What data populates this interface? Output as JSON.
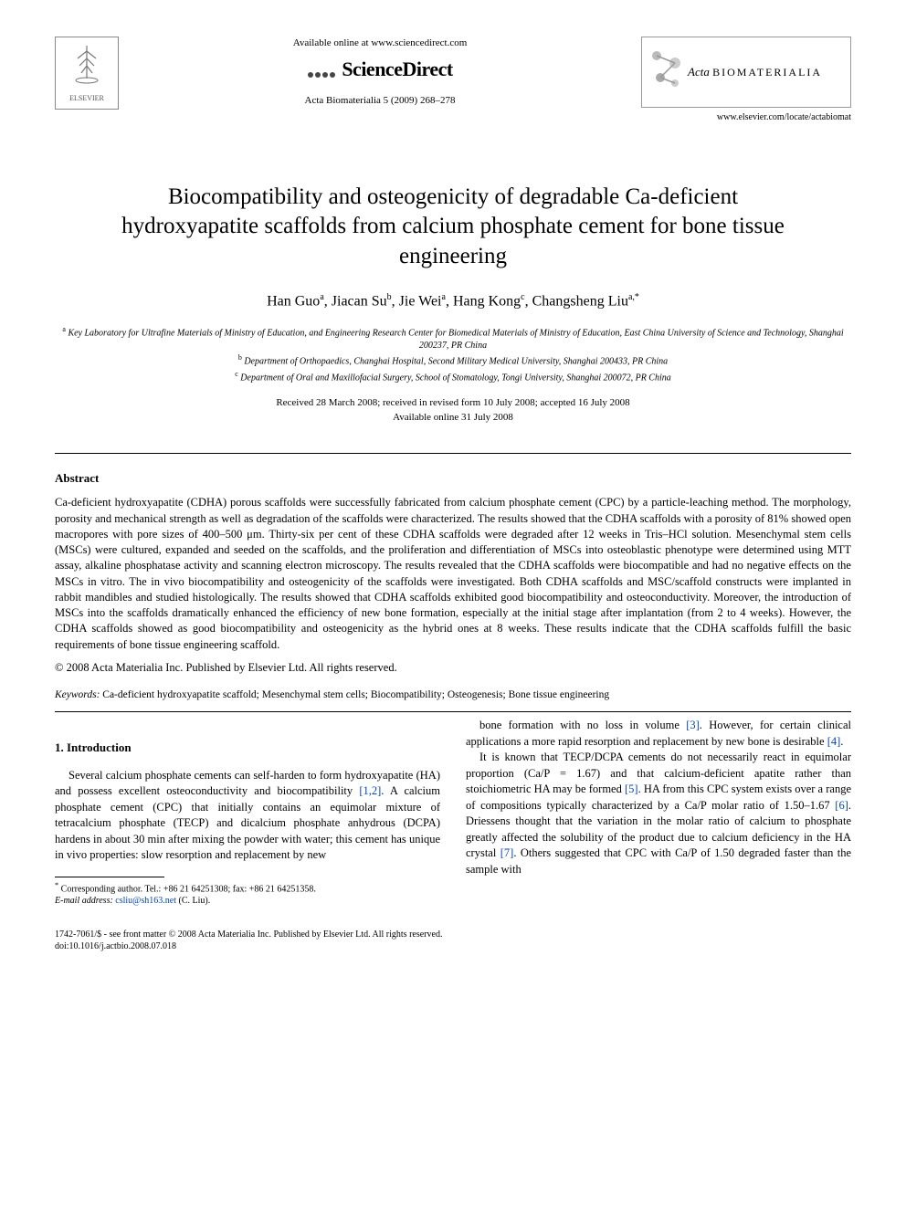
{
  "header": {
    "publisher_name": "ELSEVIER",
    "available_online": "Available online at www.sciencedirect.com",
    "platform": "ScienceDirect",
    "citation": "Acta Biomaterialia 5 (2009) 268–278",
    "journal_name_italic": "Acta",
    "journal_name_caps": "BIOMATERIALIA",
    "journal_url": "www.elsevier.com/locate/actabiomat"
  },
  "article": {
    "title": "Biocompatibility and osteogenicity of degradable Ca-deficient hydroxyapatite scaffolds from calcium phosphate cement for bone tissue engineering",
    "authors_html": "Han Guo<sup>a</sup>, Jiacan Su<sup>b</sup>, Jie Wei<sup>a</sup>, Hang Kong<sup>c</sup>, Changsheng Liu<sup>a,*</sup>",
    "affiliations": [
      "Key Laboratory for Ultrafine Materials of Ministry of Education, and Engineering Research Center for Biomedical Materials of Ministry of Education, East China University of Science and Technology, Shanghai 200237, PR China",
      "Department of Orthopaedics, Changhai Hospital, Second Military Medical University, Shanghai 200433, PR China",
      "Department of Oral and Maxillofacial Surgery, School of Stomatology, Tongi University, Shanghai 200072, PR China"
    ],
    "aff_sup": [
      "a",
      "b",
      "c"
    ],
    "dates_line1": "Received 28 March 2008; received in revised form 10 July 2008; accepted 16 July 2008",
    "dates_line2": "Available online 31 July 2008"
  },
  "abstract": {
    "heading": "Abstract",
    "body": "Ca-deficient hydroxyapatite (CDHA) porous scaffolds were successfully fabricated from calcium phosphate cement (CPC) by a particle-leaching method. The morphology, porosity and mechanical strength as well as degradation of the scaffolds were characterized. The results showed that the CDHA scaffolds with a porosity of 81% showed open macropores with pore sizes of 400–500 μm. Thirty-six per cent of these CDHA scaffolds were degraded after 12 weeks in Tris–HCl solution. Mesenchymal stem cells (MSCs) were cultured, expanded and seeded on the scaffolds, and the proliferation and differentiation of MSCs into osteoblastic phenotype were determined using MTT assay, alkaline phosphatase activity and scanning electron microscopy. The results revealed that the CDHA scaffolds were biocompatible and had no negative effects on the MSCs in vitro. The in vivo biocompatibility and osteogenicity of the scaffolds were investigated. Both CDHA scaffolds and MSC/scaffold constructs were implanted in rabbit mandibles and studied histologically. The results showed that CDHA scaffolds exhibited good biocompatibility and osteoconductivity. Moreover, the introduction of MSCs into the scaffolds dramatically enhanced the efficiency of new bone formation, especially at the initial stage after implantation (from 2 to 4 weeks). However, the CDHA scaffolds showed as good biocompatibility and osteogenicity as the hybrid ones at 8 weeks. These results indicate that the CDHA scaffolds fulfill the basic requirements of bone tissue engineering scaffold.",
    "copyright": "© 2008 Acta Materialia Inc. Published by Elsevier Ltd. All rights reserved."
  },
  "keywords": {
    "label": "Keywords:",
    "list": "Ca-deficient hydroxyapatite scaffold; Mesenchymal stem cells; Biocompatibility; Osteogenesis; Bone tissue engineering"
  },
  "intro": {
    "heading": "1. Introduction",
    "para1_a": "Several calcium phosphate cements can self-harden to form hydroxyapatite (HA) and possess excellent osteoconductivity and biocompatibility ",
    "ref1": "[1,2]",
    "para1_b": ". A calcium phosphate cement (CPC) that initially contains an equimolar mixture of tetracalcium phosphate (TECP) and dicalcium phosphate anhydrous (DCPA) hardens in about 30 min after mixing the powder with water; this cement has unique in vivo properties: slow resorption and replacement by new ",
    "para2_a": "bone formation with no loss in volume ",
    "ref3": "[3]",
    "para2_b": ". However, for certain clinical applications a more rapid resorption and replacement by new bone is desirable ",
    "ref4": "[4]",
    "para2_c": ".",
    "para3_a": "It is known that TECP/DCPA cements do not necessarily react in equimolar proportion (Ca/P = 1.67) and that calcium-deficient apatite rather than stoichiometric HA may be formed ",
    "ref5": "[5]",
    "para3_b": ". HA from this CPC system exists over a range of compositions typically characterized by a Ca/P molar ratio of 1.50–1.67 ",
    "ref6": "[6]",
    "para3_c": ". Driessens thought that the variation in the molar ratio of calcium to phosphate greatly affected the solubility of the product due to calcium deficiency in the HA crystal ",
    "ref7": "[7]",
    "para3_d": ". Others suggested that CPC with Ca/P of 1.50 degraded faster than the sample with"
  },
  "footnote": {
    "corr": "Corresponding author. Tel.: +86 21 64251308; fax: +86 21 64251358.",
    "email_label": "E-mail address:",
    "email": "csliu@sh163.net",
    "email_name": "(C. Liu)."
  },
  "footer": {
    "line1": "1742-7061/$ - see front matter © 2008 Acta Materialia Inc. Published by Elsevier Ltd. All rights reserved.",
    "line2": "doi:10.1016/j.actbio.2008.07.018"
  },
  "style": {
    "link_color": "#0645ad",
    "text_color": "#000000",
    "bg_color": "#ffffff",
    "title_fontsize": 25,
    "author_fontsize": 16,
    "body_fontsize": 12.5,
    "affil_fontsize": 10,
    "footer_fontsize": 10
  }
}
